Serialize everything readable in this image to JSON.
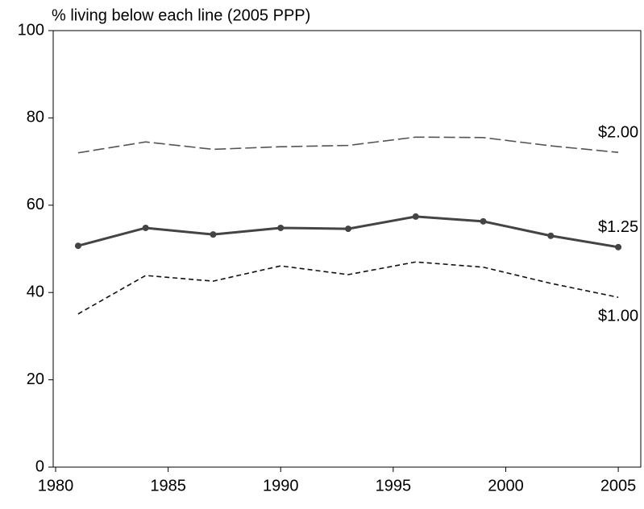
{
  "chart_data": {
    "type": "line",
    "y_label": "% living below each line (2005 PPP)",
    "x": [
      1981,
      1984,
      1987,
      1990,
      1993,
      1996,
      1999,
      2002,
      2005
    ],
    "series": [
      {
        "name": "$2.00",
        "color": "#555555",
        "dash": "14 5",
        "width": 1.6,
        "markers": false,
        "values": [
          72.0,
          74.5,
          72.8,
          73.4,
          73.7,
          75.6,
          75.5,
          73.6,
          72.1
        ]
      },
      {
        "name": "$1.25",
        "color": "#444444",
        "dash": "none",
        "width": 3,
        "markers": true,
        "values": [
          50.7,
          54.8,
          53.3,
          54.8,
          54.6,
          57.4,
          56.3,
          53.0,
          50.4
        ]
      },
      {
        "name": "$1.00",
        "color": "#111111",
        "dash": "6 4",
        "width": 1.6,
        "markers": false,
        "values": [
          35.1,
          43.9,
          42.6,
          46.1,
          44.1,
          47.0,
          45.8,
          42.1,
          38.9
        ]
      }
    ],
    "xlim": [
      1980,
      2006
    ],
    "xticks": [
      1980,
      1985,
      1990,
      1995,
      2000,
      2005
    ],
    "ylim": [
      0,
      100
    ],
    "yticks": [
      0,
      20,
      40,
      60,
      80,
      100
    ],
    "grid": false
  }
}
